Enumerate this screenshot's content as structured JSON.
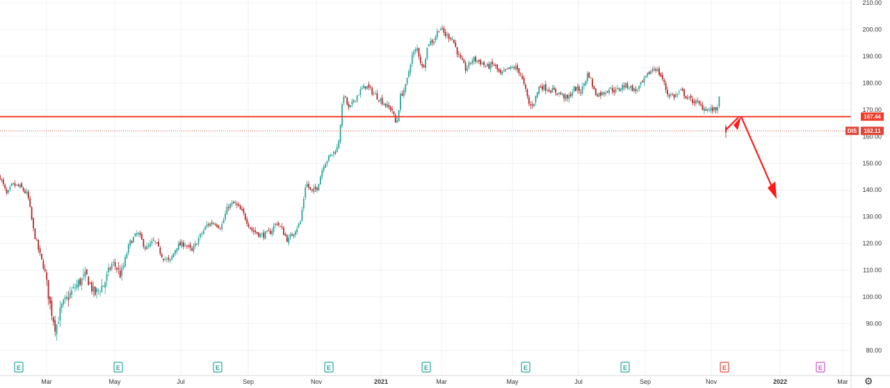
{
  "symbol": "DIS",
  "colors": {
    "up": "#26a69a",
    "down": "#b22222",
    "resistance": "#f23b2b",
    "arrow": "#ff1a1a",
    "grid": "#eef0f3",
    "price_tag": "#e0463a",
    "earnings_past": "#26a69a",
    "earnings_next": "#e0463a",
    "earnings_future": "#d54cd5"
  },
  "price_axis": {
    "ticks": [
      "210.00",
      "200.00",
      "190.00",
      "180.00",
      "170.00",
      "160.00",
      "150.00",
      "140.00",
      "130.00",
      "120.00",
      "110.00",
      "100.00",
      "90.00",
      "80.00"
    ],
    "range": [
      77.5,
      211
    ]
  },
  "time_axis": {
    "labels": [
      "Mar",
      "May",
      "Jul",
      "Sep",
      "Nov",
      "2021",
      "Mar",
      "May",
      "Jul",
      "Sep",
      "Nov",
      "2022",
      "Mar"
    ]
  },
  "price_tags": {
    "resistance": "167.44",
    "last": "162.11"
  },
  "earnings_markers": [
    {
      "label": "E",
      "kind": "past"
    },
    {
      "label": "E",
      "kind": "past"
    },
    {
      "label": "E",
      "kind": "past"
    },
    {
      "label": "E",
      "kind": "past"
    },
    {
      "label": "E",
      "kind": "past"
    },
    {
      "label": "E",
      "kind": "past"
    },
    {
      "label": "E",
      "kind": "past"
    },
    {
      "label": "E",
      "kind": "next"
    },
    {
      "label": "E",
      "kind": "future"
    }
  ],
  "settings_icon": "gear-icon",
  "chart_data": {
    "type": "candlestick",
    "ticker": "DIS",
    "resistance_level": 167.44,
    "last_price": 162.11,
    "ylim": [
      77.5,
      211
    ],
    "x_tick_labels": [
      "Mar",
      "May",
      "Jul",
      "Sep",
      "Nov",
      "2021",
      "Mar",
      "May",
      "Jul",
      "Sep",
      "Nov",
      "2022",
      "Mar"
    ],
    "y_tick_labels": [
      "210.00",
      "200.00",
      "190.00",
      "180.00",
      "170.00",
      "160.00",
      "150.00",
      "140.00",
      "130.00",
      "120.00",
      "110.00",
      "100.00",
      "90.00",
      "80.00"
    ],
    "annotation": "drawn arrow: small rise toward the 167.44 level, then a projected decline toward ~137",
    "close_path": [
      {
        "d": 0,
        "c": 145
      },
      {
        "d": 10,
        "c": 138
      },
      {
        "d": 18,
        "c": 142
      },
      {
        "d": 30,
        "c": 141
      },
      {
        "d": 40,
        "c": 138
      },
      {
        "d": 48,
        "c": 125
      },
      {
        "d": 56,
        "c": 117
      },
      {
        "d": 64,
        "c": 110
      },
      {
        "d": 72,
        "c": 97
      },
      {
        "d": 80,
        "c": 88
      },
      {
        "d": 88,
        "c": 96
      },
      {
        "d": 98,
        "c": 100
      },
      {
        "d": 112,
        "c": 105
      },
      {
        "d": 124,
        "c": 108
      },
      {
        "d": 136,
        "c": 101
      },
      {
        "d": 150,
        "c": 105
      },
      {
        "d": 162,
        "c": 113
      },
      {
        "d": 174,
        "c": 108
      },
      {
        "d": 186,
        "c": 120
      },
      {
        "d": 198,
        "c": 124
      },
      {
        "d": 210,
        "c": 118
      },
      {
        "d": 222,
        "c": 121
      },
      {
        "d": 234,
        "c": 115
      },
      {
        "d": 244,
        "c": 113
      },
      {
        "d": 254,
        "c": 119
      },
      {
        "d": 266,
        "c": 120
      },
      {
        "d": 276,
        "c": 117
      },
      {
        "d": 286,
        "c": 122
      },
      {
        "d": 298,
        "c": 127
      },
      {
        "d": 308,
        "c": 128
      },
      {
        "d": 318,
        "c": 126
      },
      {
        "d": 328,
        "c": 134
      },
      {
        "d": 338,
        "c": 135
      },
      {
        "d": 350,
        "c": 131
      },
      {
        "d": 362,
        "c": 125
      },
      {
        "d": 376,
        "c": 123
      },
      {
        "d": 388,
        "c": 124
      },
      {
        "d": 398,
        "c": 128
      },
      {
        "d": 406,
        "c": 125
      },
      {
        "d": 414,
        "c": 121
      },
      {
        "d": 424,
        "c": 125
      },
      {
        "d": 432,
        "c": 128
      },
      {
        "d": 440,
        "c": 143
      },
      {
        "d": 448,
        "c": 139
      },
      {
        "d": 456,
        "c": 141
      },
      {
        "d": 466,
        "c": 150
      },
      {
        "d": 476,
        "c": 153
      },
      {
        "d": 486,
        "c": 156
      },
      {
        "d": 494,
        "c": 176
      },
      {
        "d": 502,
        "c": 170
      },
      {
        "d": 510,
        "c": 174
      },
      {
        "d": 518,
        "c": 177
      },
      {
        "d": 526,
        "c": 179
      },
      {
        "d": 534,
        "c": 177
      },
      {
        "d": 542,
        "c": 175
      },
      {
        "d": 550,
        "c": 173
      },
      {
        "d": 558,
        "c": 171
      },
      {
        "d": 564,
        "c": 170
      },
      {
        "d": 570,
        "c": 164
      },
      {
        "d": 576,
        "c": 175
      },
      {
        "d": 584,
        "c": 179
      },
      {
        "d": 592,
        "c": 190
      },
      {
        "d": 600,
        "c": 193
      },
      {
        "d": 608,
        "c": 185
      },
      {
        "d": 616,
        "c": 195
      },
      {
        "d": 624,
        "c": 196
      },
      {
        "d": 632,
        "c": 201
      },
      {
        "d": 640,
        "c": 198
      },
      {
        "d": 650,
        "c": 197
      },
      {
        "d": 660,
        "c": 190
      },
      {
        "d": 670,
        "c": 185
      },
      {
        "d": 680,
        "c": 189
      },
      {
        "d": 690,
        "c": 188
      },
      {
        "d": 700,
        "c": 186
      },
      {
        "d": 710,
        "c": 187
      },
      {
        "d": 720,
        "c": 183
      },
      {
        "d": 730,
        "c": 185
      },
      {
        "d": 740,
        "c": 186
      },
      {
        "d": 748,
        "c": 184
      },
      {
        "d": 756,
        "c": 177
      },
      {
        "d": 762,
        "c": 171
      },
      {
        "d": 768,
        "c": 173
      },
      {
        "d": 776,
        "c": 179
      },
      {
        "d": 786,
        "c": 178
      },
      {
        "d": 796,
        "c": 177
      },
      {
        "d": 806,
        "c": 176
      },
      {
        "d": 816,
        "c": 174
      },
      {
        "d": 826,
        "c": 178
      },
      {
        "d": 836,
        "c": 177
      },
      {
        "d": 846,
        "c": 184
      },
      {
        "d": 856,
        "c": 176
      },
      {
        "d": 866,
        "c": 176
      },
      {
        "d": 876,
        "c": 178
      },
      {
        "d": 886,
        "c": 177
      },
      {
        "d": 896,
        "c": 179
      },
      {
        "d": 904,
        "c": 179
      },
      {
        "d": 914,
        "c": 177
      },
      {
        "d": 924,
        "c": 180
      },
      {
        "d": 934,
        "c": 184
      },
      {
        "d": 942,
        "c": 186
      },
      {
        "d": 952,
        "c": 182
      },
      {
        "d": 960,
        "c": 176
      },
      {
        "d": 970,
        "c": 175
      },
      {
        "d": 980,
        "c": 177
      },
      {
        "d": 990,
        "c": 174
      },
      {
        "d": 1000,
        "c": 173
      },
      {
        "d": 1010,
        "c": 171
      },
      {
        "d": 1020,
        "c": 170
      },
      {
        "d": 1030,
        "c": 170
      },
      {
        "d": 1038,
        "c": 177
      },
      {
        "d": 1044,
        "c": 162.11
      }
    ]
  }
}
